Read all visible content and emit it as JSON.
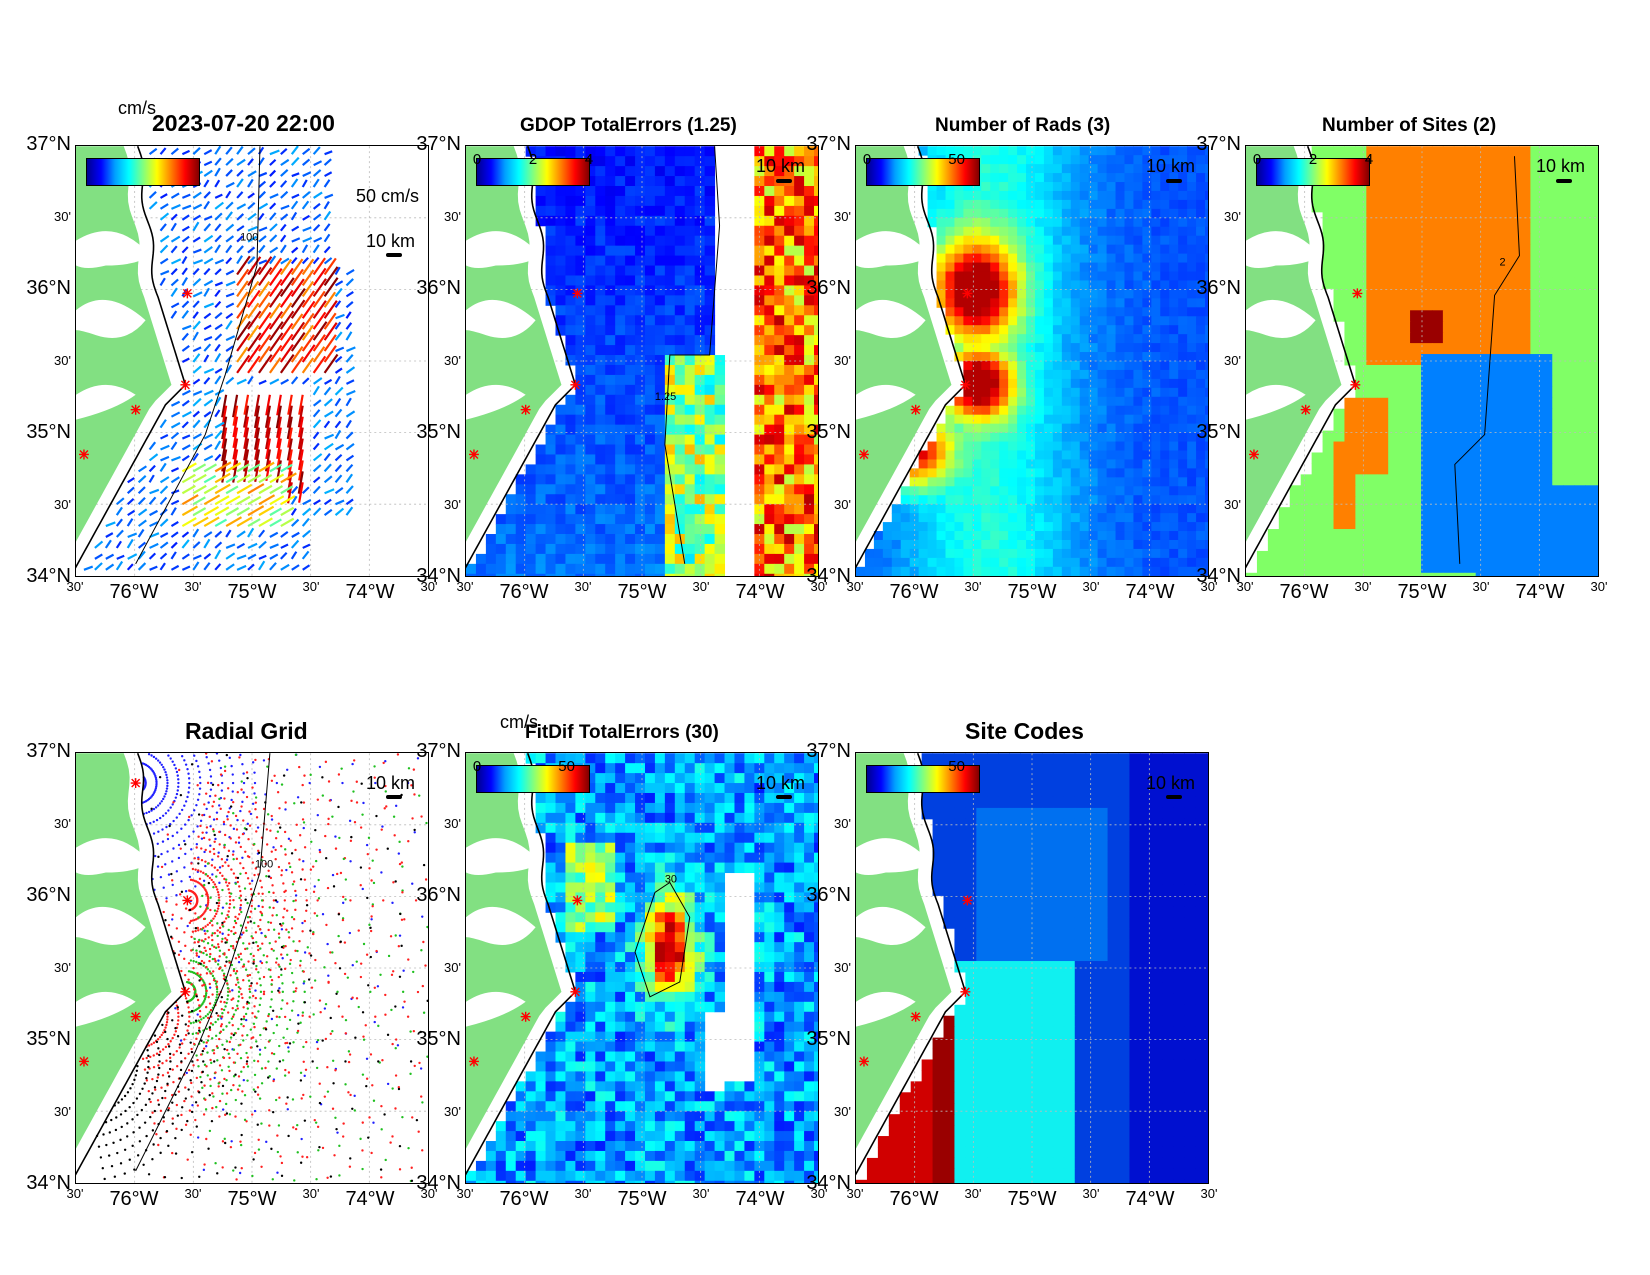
{
  "panels": [
    {
      "id": "p1",
      "title": "2023-07-20 22:00",
      "unit_label": "cm/s",
      "cbar_ticks": [],
      "vector_scale_label": "50 cm/s",
      "scale_label": "10 km",
      "contour_label": "100",
      "kind": "vectors"
    },
    {
      "id": "p2",
      "title": "GDOP TotalErrors (1.25)",
      "cbar_ticks": [
        "0",
        "2",
        "4"
      ],
      "scale_label": "10 km",
      "contour_label": "1.25",
      "kind": "gdop"
    },
    {
      "id": "p3",
      "title": "Number of Rads (3)",
      "cbar_ticks": [
        "0",
        "50"
      ],
      "scale_label": "10 km",
      "contour_label": "3",
      "kind": "rads"
    },
    {
      "id": "p4",
      "title": "Number of Sites (2)",
      "cbar_ticks": [
        "0",
        "2",
        "4"
      ],
      "scale_label": "10 km",
      "contour_label": "2",
      "kind": "sites"
    },
    {
      "id": "p5",
      "title": "Radial Grid",
      "cbar_ticks": [],
      "scale_label": "10 km",
      "contour_label": "100",
      "kind": "radial"
    },
    {
      "id": "p6",
      "title": "FitDif TotalErrors (30)",
      "unit_label": "cm/s",
      "cbar_ticks": [
        "0",
        "50"
      ],
      "scale_label": "10 km",
      "contour_label": "30",
      "kind": "fitdif"
    },
    {
      "id": "p7",
      "title": "Site Codes",
      "cbar_ticks": [
        "50"
      ],
      "scale_label": "10 km",
      "contour_label": "",
      "kind": "codes"
    }
  ],
  "axes": {
    "lat_labels": [
      "37°N",
      "30'",
      "36°N",
      "30'",
      "35°N",
      "30'",
      "34°N"
    ],
    "lon_labels": [
      "30'",
      "76°W",
      "30'",
      "75°W",
      "30'",
      "74°W",
      "30'"
    ]
  },
  "colors": {
    "land": "#82e082",
    "coast": "#000000",
    "site_marker": "#ff0000"
  }
}
